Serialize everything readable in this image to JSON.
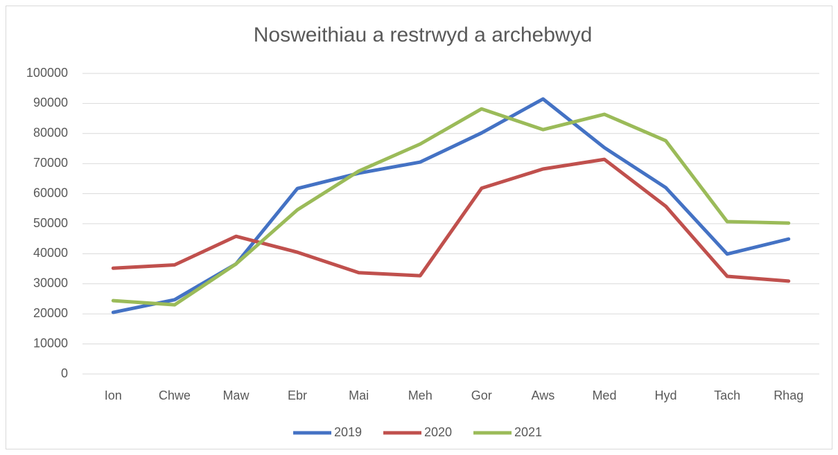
{
  "chart_data": {
    "type": "line",
    "title": "Nosweithiau a restrwyd a archebwyd",
    "categories": [
      "Ion",
      "Chwe",
      "Maw",
      "Ebr",
      "Mai",
      "Meh",
      "Gor",
      "Aws",
      "Med",
      "Hyd",
      "Tach",
      "Rhag"
    ],
    "series": [
      {
        "name": "2019",
        "color": "#4472c4",
        "values": [
          20500,
          24700,
          36600,
          61700,
          66800,
          70500,
          80200,
          91500,
          75300,
          62000,
          39900,
          44900
        ]
      },
      {
        "name": "2020",
        "color": "#c0504d",
        "values": [
          35200,
          36300,
          45800,
          40500,
          33700,
          32700,
          61800,
          68200,
          71400,
          55800,
          32500,
          30900
        ]
      },
      {
        "name": "2021",
        "color": "#9bbb59",
        "values": [
          24400,
          23000,
          36600,
          54600,
          67500,
          76500,
          88200,
          81300,
          86400,
          77600,
          50700,
          50200
        ]
      }
    ],
    "ylim": [
      0,
      100000
    ],
    "yticks": [
      0,
      10000,
      20000,
      30000,
      40000,
      50000,
      60000,
      70000,
      80000,
      90000,
      100000
    ],
    "grid": true,
    "legend": "bottom"
  }
}
